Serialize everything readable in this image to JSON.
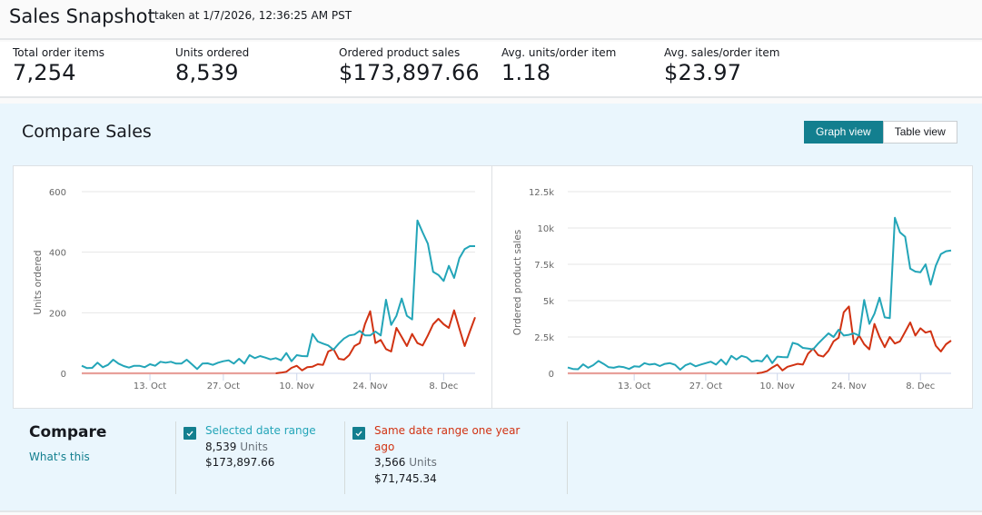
{
  "header": {
    "title": "Sales Snapshot",
    "taken_at": "taken at 1/7/2026, 12:36:25 AM PST"
  },
  "metrics": [
    {
      "label": "Total order items",
      "value": "7,254"
    },
    {
      "label": "Units ordered",
      "value": "8,539"
    },
    {
      "label": "Ordered product sales",
      "value": "$173,897.66"
    },
    {
      "label": "Avg. units/order item",
      "value": "1.18"
    },
    {
      "label": "Avg. sales/order item",
      "value": "$23.97"
    }
  ],
  "compare_sales": {
    "title": "Compare Sales",
    "view_toggle": {
      "graph_label": "Graph view",
      "table_label": "Table view",
      "active": "graph"
    }
  },
  "colors": {
    "selected": "#23a5b8",
    "previous": "#d13212",
    "accent": "#137f8f"
  },
  "chart_data": [
    {
      "type": "line",
      "title": "",
      "xlabel": "",
      "ylabel": "Units ordered",
      "ylim": [
        0,
        600
      ],
      "yticks": [
        0,
        200,
        400,
        600
      ],
      "ytick_labels": [
        "0",
        "200",
        "400",
        "600"
      ],
      "xtick_labels": [
        "13. Oct",
        "27. Oct",
        "10. Nov",
        "24. Nov",
        "8. Dec"
      ],
      "xtick_day_index": [
        13,
        27,
        41,
        55,
        69
      ],
      "x_days": 76,
      "grid": true,
      "legend": "none",
      "series": [
        {
          "name": "Selected date range",
          "color": "#23a5b8",
          "values": [
            25,
            17,
            18,
            35,
            20,
            28,
            45,
            32,
            24,
            19,
            25,
            25,
            20,
            30,
            25,
            38,
            35,
            38,
            32,
            32,
            45,
            30,
            14,
            32,
            33,
            28,
            35,
            40,
            43,
            32,
            48,
            32,
            60,
            50,
            57,
            52,
            46,
            50,
            43,
            67,
            40,
            60,
            57,
            56,
            130,
            105,
            98,
            92,
            78,
            98,
            115,
            125,
            128,
            140,
            125,
            125,
            138,
            125,
            243,
            160,
            190,
            247,
            190,
            178,
            505,
            465,
            428,
            335,
            325,
            305,
            355,
            315,
            380,
            410,
            420,
            420
          ]
        },
        {
          "name": "Same date range one year ago",
          "color": "#d13212",
          "values": [
            0,
            0,
            0,
            0,
            0,
            0,
            0,
            0,
            0,
            0,
            0,
            0,
            0,
            0,
            0,
            0,
            0,
            0,
            0,
            0,
            0,
            0,
            0,
            0,
            0,
            0,
            0,
            0,
            0,
            0,
            0,
            0,
            0,
            0,
            0,
            0,
            0,
            0,
            2,
            5,
            18,
            25,
            10,
            20,
            22,
            30,
            28,
            72,
            80,
            48,
            45,
            60,
            90,
            100,
            163,
            205,
            100,
            110,
            80,
            72,
            150,
            120,
            90,
            130,
            100,
            92,
            125,
            162,
            180,
            162,
            150,
            208,
            148,
            90,
            138,
            185
          ]
        }
      ]
    },
    {
      "type": "line",
      "title": "",
      "xlabel": "",
      "ylabel": "Ordered product sales",
      "ylim": [
        0,
        12500
      ],
      "yticks": [
        0,
        2500,
        5000,
        7500,
        10000,
        12500
      ],
      "ytick_labels": [
        "0",
        "2.5k",
        "5k",
        "7.5k",
        "10k",
        "12.5k"
      ],
      "xtick_labels": [
        "13. Oct",
        "27. Oct",
        "10. Nov",
        "24. Nov",
        "8. Dec"
      ],
      "xtick_day_index": [
        13,
        27,
        41,
        55,
        69
      ],
      "x_days": 76,
      "grid": true,
      "legend": "none",
      "series": [
        {
          "name": "Selected date range",
          "color": "#23a5b8",
          "values": [
            400,
            300,
            280,
            620,
            380,
            560,
            850,
            650,
            420,
            380,
            470,
            420,
            300,
            480,
            450,
            700,
            600,
            650,
            500,
            650,
            700,
            580,
            250,
            550,
            680,
            480,
            600,
            700,
            800,
            600,
            950,
            600,
            1200,
            950,
            1200,
            1100,
            800,
            880,
            820,
            1250,
            700,
            1150,
            1120,
            1100,
            2100,
            2000,
            1750,
            1700,
            1650,
            2050,
            2400,
            2750,
            2500,
            3000,
            2600,
            2650,
            2750,
            2600,
            5050,
            3400,
            4100,
            5200,
            3850,
            3800,
            10700,
            9700,
            9400,
            7200,
            7000,
            6950,
            7500,
            6100,
            7400,
            8200,
            8400,
            8450
          ]
        },
        {
          "name": "Same date range one year ago",
          "color": "#d13212",
          "values": [
            0,
            0,
            0,
            0,
            0,
            0,
            0,
            0,
            0,
            0,
            0,
            0,
            0,
            0,
            0,
            0,
            0,
            0,
            0,
            0,
            0,
            0,
            0,
            0,
            0,
            0,
            0,
            0,
            0,
            0,
            0,
            0,
            0,
            0,
            0,
            0,
            0,
            0,
            50,
            150,
            400,
            600,
            200,
            450,
            550,
            650,
            600,
            1350,
            1700,
            1250,
            1150,
            1550,
            2200,
            2450,
            4200,
            4600,
            2000,
            2600,
            2000,
            1650,
            3400,
            2500,
            1800,
            2500,
            2050,
            2200,
            2850,
            3500,
            2600,
            3100,
            2800,
            2900,
            1900,
            1500,
            2000,
            2250
          ]
        }
      ]
    }
  ],
  "compare_legend": {
    "title": "Compare",
    "whats_this": "What's this",
    "items": [
      {
        "name": "Selected date range",
        "units_value": "8,539",
        "units_word": "Units",
        "sales": "$173,897.66",
        "checked": true
      },
      {
        "name": "Same date range one year ago",
        "units_value": "3,566",
        "units_word": "Units",
        "sales": "$71,745.34",
        "checked": true
      }
    ]
  }
}
